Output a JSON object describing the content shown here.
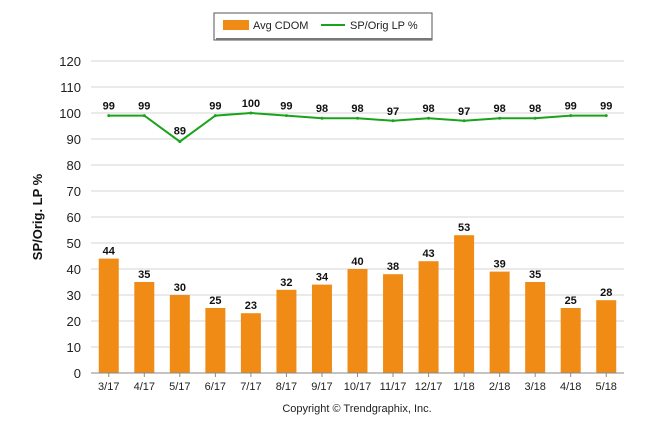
{
  "chart_data": {
    "type": "bar",
    "title": "",
    "xlabel": "",
    "ylabel": "SP/Orig. LP %",
    "ylim": [
      0,
      120
    ],
    "yticks": [
      0,
      10,
      20,
      30,
      40,
      50,
      60,
      70,
      80,
      90,
      100,
      110,
      120
    ],
    "categories": [
      "3/17",
      "4/17",
      "5/17",
      "6/17",
      "7/17",
      "8/17",
      "9/17",
      "10/17",
      "11/17",
      "12/17",
      "1/18",
      "2/18",
      "3/18",
      "4/18",
      "5/18"
    ],
    "series": [
      {
        "name": "Avg CDOM",
        "type": "bar",
        "color": "#f08c16",
        "values": [
          44,
          35,
          30,
          25,
          23,
          32,
          34,
          40,
          38,
          43,
          53,
          39,
          35,
          25,
          28
        ]
      },
      {
        "name": "SP/Orig LP %",
        "type": "line",
        "color": "#1aa31a",
        "values": [
          99,
          99,
          89,
          99,
          100,
          99,
          98,
          98,
          97,
          98,
          97,
          98,
          98,
          99,
          99
        ]
      }
    ],
    "grid": true,
    "legend_position": "top"
  },
  "footer": {
    "copyright": "Copyright © Trendgraphix, Inc."
  }
}
